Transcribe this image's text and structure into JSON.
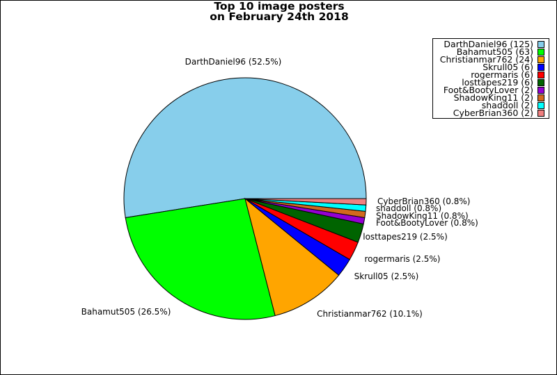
{
  "chart_data": {
    "type": "pie",
    "title": [
      "Top 10 image posters",
      "on February 24th 2018"
    ],
    "legend_position": "top-right",
    "slices": [
      {
        "name": "DarthDaniel96",
        "value": 125,
        "percent_label": "52.5%",
        "legend": "DarthDaniel96 (125)",
        "label": "DarthDaniel96 (52.5%)",
        "color": "#87CEEB"
      },
      {
        "name": "Bahamut505",
        "value": 63,
        "percent_label": "26.5%",
        "legend": "Bahamut505 (63)",
        "label": "Bahamut505 (26.5%)",
        "color": "#00FF00"
      },
      {
        "name": "Christianmar762",
        "value": 24,
        "percent_label": "10.1%",
        "legend": "Christianmar762 (24)",
        "label": "Christianmar762 (10.1%)",
        "color": "#FFA500"
      },
      {
        "name": "Skrull05",
        "value": 6,
        "percent_label": "2.5%",
        "legend": "Skrull05 (6)",
        "label": "Skrull05 (2.5%)",
        "color": "#0000FF"
      },
      {
        "name": "rogermaris",
        "value": 6,
        "percent_label": "2.5%",
        "legend": "rogermaris (6)",
        "label": "rogermaris (2.5%)",
        "color": "#FF0000"
      },
      {
        "name": "losttapes219",
        "value": 6,
        "percent_label": "2.5%",
        "legend": "losttapes219 (6)",
        "label": "losttapes219 (2.5%)",
        "color": "#006400"
      },
      {
        "name": "Foot&BootyLover",
        "value": 2,
        "percent_label": "0.8%",
        "legend": "Foot&BootyLover (2)",
        "label": "Foot&BootyLover (0.8%)",
        "color": "#9400D3"
      },
      {
        "name": "ShadowKing11",
        "value": 2,
        "percent_label": "0.8%",
        "legend": "ShadowKing11 (2)",
        "label": "ShadowKing11 (0.8%)",
        "color": "#D2691E"
      },
      {
        "name": "shaddoll",
        "value": 2,
        "percent_label": "0.8%",
        "legend": "shaddoll (2)",
        "label": "shaddoll (0.8%)",
        "color": "#00FFFF"
      },
      {
        "name": "CyberBrian360",
        "value": 2,
        "percent_label": "0.8%",
        "legend": "CyberBrian360 (2)",
        "label": "CyberBrian360 (0.8%)",
        "color": "#F08080"
      }
    ]
  }
}
